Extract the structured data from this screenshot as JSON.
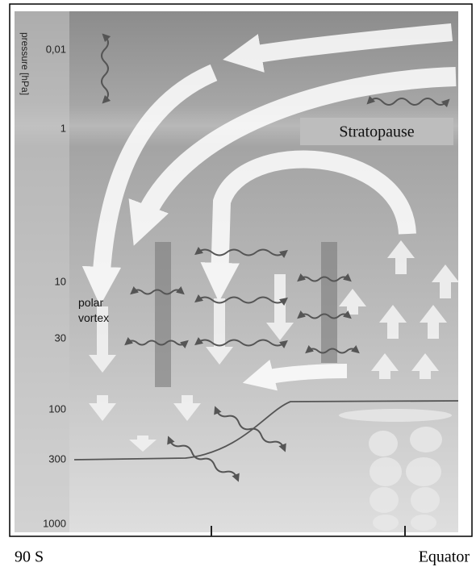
{
  "axis": {
    "title": "pressure [hPa]",
    "labels": [
      "0,01",
      "1",
      "10",
      "30",
      "100",
      "300",
      "1000"
    ]
  },
  "annotations": {
    "stratopause": "Stratopause",
    "polar_vortex": [
      "polar",
      "vortex"
    ]
  },
  "bottom_labels": {
    "left": "90 S",
    "right": "Equator"
  }
}
